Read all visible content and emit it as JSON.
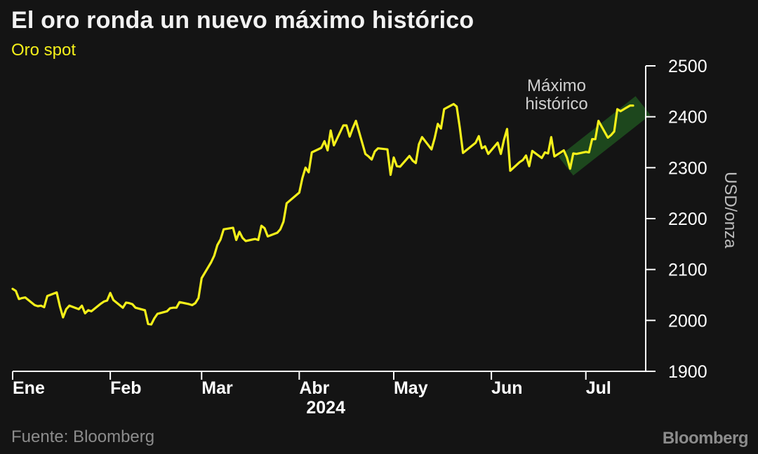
{
  "header": {
    "title": "El oro ronda un nuevo máximo histórico",
    "subtitle": "Oro spot"
  },
  "footer": {
    "source": "Fuente: Bloomberg",
    "brand": "Bloomberg"
  },
  "colors": {
    "background": "#141414",
    "series": "#f5f01a",
    "highlight_band": "#1e4a1e",
    "axis": "#ffffff",
    "muted_text": "#8c8c8c"
  },
  "chart_data": {
    "type": "line",
    "title": "El oro ronda un nuevo máximo histórico",
    "subtitle": "Oro spot",
    "ylabel": "USD/onza",
    "ylabel_position": "right",
    "ylim": [
      1900,
      2500
    ],
    "yticks": [
      1900,
      2000,
      2100,
      2200,
      2300,
      2400,
      2500
    ],
    "xlim": [
      "2024-01-01",
      "2024-07-20"
    ],
    "xtick_labels": [
      "Ene",
      "Feb",
      "Mar",
      "Abr",
      "May",
      "Jun",
      "Jul"
    ],
    "xtick_dates": [
      "2024-01-01",
      "2024-02-01",
      "2024-03-01",
      "2024-04-01",
      "2024-05-01",
      "2024-06-01",
      "2024-07-01"
    ],
    "year_label": "2024",
    "grid": false,
    "legend": "none",
    "annotation": {
      "text_lines": [
        "Máximo",
        "histórico"
      ],
      "highlight_from": "2024-06-26",
      "highlight_to": "2024-07-17"
    },
    "series": [
      {
        "values": [
          [
            "2024-01-01",
            2062
          ],
          [
            "2024-01-02",
            2058
          ],
          [
            "2024-01-03",
            2042
          ],
          [
            "2024-01-04",
            2044
          ],
          [
            "2024-01-05",
            2045
          ],
          [
            "2024-01-08",
            2030
          ],
          [
            "2024-01-09",
            2028
          ],
          [
            "2024-01-10",
            2029
          ],
          [
            "2024-01-11",
            2026
          ],
          [
            "2024-01-12",
            2048
          ],
          [
            "2024-01-15",
            2055
          ],
          [
            "2024-01-16",
            2028
          ],
          [
            "2024-01-17",
            2006
          ],
          [
            "2024-01-18",
            2022
          ],
          [
            "2024-01-19",
            2029
          ],
          [
            "2024-01-22",
            2022
          ],
          [
            "2024-01-23",
            2029
          ],
          [
            "2024-01-24",
            2014
          ],
          [
            "2024-01-25",
            2020
          ],
          [
            "2024-01-26",
            2018
          ],
          [
            "2024-01-29",
            2033
          ],
          [
            "2024-01-30",
            2037
          ],
          [
            "2024-01-31",
            2039
          ],
          [
            "2024-02-01",
            2054
          ],
          [
            "2024-02-02",
            2040
          ],
          [
            "2024-02-05",
            2025
          ],
          [
            "2024-02-06",
            2035
          ],
          [
            "2024-02-07",
            2034
          ],
          [
            "2024-02-08",
            2032
          ],
          [
            "2024-02-09",
            2025
          ],
          [
            "2024-02-12",
            2020
          ],
          [
            "2024-02-13",
            1993
          ],
          [
            "2024-02-14",
            1992
          ],
          [
            "2024-02-15",
            2004
          ],
          [
            "2024-02-16",
            2013
          ],
          [
            "2024-02-19",
            2018
          ],
          [
            "2024-02-20",
            2024
          ],
          [
            "2024-02-21",
            2025
          ],
          [
            "2024-02-22",
            2025
          ],
          [
            "2024-02-23",
            2036
          ],
          [
            "2024-02-26",
            2032
          ],
          [
            "2024-02-27",
            2030
          ],
          [
            "2024-02-28",
            2034
          ],
          [
            "2024-02-29",
            2044
          ],
          [
            "2024-03-01",
            2083
          ],
          [
            "2024-03-04",
            2114
          ],
          [
            "2024-03-05",
            2127
          ],
          [
            "2024-03-06",
            2148
          ],
          [
            "2024-03-07",
            2159
          ],
          [
            "2024-03-08",
            2179
          ],
          [
            "2024-03-11",
            2182
          ],
          [
            "2024-03-12",
            2158
          ],
          [
            "2024-03-13",
            2174
          ],
          [
            "2024-03-14",
            2162
          ],
          [
            "2024-03-15",
            2156
          ],
          [
            "2024-03-18",
            2160
          ],
          [
            "2024-03-19",
            2158
          ],
          [
            "2024-03-20",
            2186
          ],
          [
            "2024-03-21",
            2181
          ],
          [
            "2024-03-22",
            2165
          ],
          [
            "2024-03-25",
            2172
          ],
          [
            "2024-03-26",
            2179
          ],
          [
            "2024-03-27",
            2194
          ],
          [
            "2024-03-28",
            2230
          ],
          [
            "2024-04-01",
            2251
          ],
          [
            "2024-04-02",
            2280
          ],
          [
            "2024-04-03",
            2300
          ],
          [
            "2024-04-04",
            2291
          ],
          [
            "2024-04-05",
            2330
          ],
          [
            "2024-04-08",
            2339
          ],
          [
            "2024-04-09",
            2352
          ],
          [
            "2024-04-10",
            2334
          ],
          [
            "2024-04-11",
            2373
          ],
          [
            "2024-04-12",
            2344
          ],
          [
            "2024-04-15",
            2383
          ],
          [
            "2024-04-16",
            2383
          ],
          [
            "2024-04-17",
            2361
          ],
          [
            "2024-04-18",
            2378
          ],
          [
            "2024-04-19",
            2392
          ],
          [
            "2024-04-22",
            2327
          ],
          [
            "2024-04-23",
            2322
          ],
          [
            "2024-04-24",
            2316
          ],
          [
            "2024-04-25",
            2332
          ],
          [
            "2024-04-26",
            2338
          ],
          [
            "2024-04-29",
            2336
          ],
          [
            "2024-04-30",
            2286
          ],
          [
            "2024-05-01",
            2320
          ],
          [
            "2024-05-02",
            2303
          ],
          [
            "2024-05-03",
            2302
          ],
          [
            "2024-05-06",
            2323
          ],
          [
            "2024-05-07",
            2314
          ],
          [
            "2024-05-08",
            2309
          ],
          [
            "2024-05-09",
            2346
          ],
          [
            "2024-05-10",
            2360
          ],
          [
            "2024-05-13",
            2336
          ],
          [
            "2024-05-14",
            2358
          ],
          [
            "2024-05-15",
            2386
          ],
          [
            "2024-05-16",
            2377
          ],
          [
            "2024-05-17",
            2415
          ],
          [
            "2024-05-20",
            2425
          ],
          [
            "2024-05-21",
            2420
          ],
          [
            "2024-05-22",
            2378
          ],
          [
            "2024-05-23",
            2329
          ],
          [
            "2024-05-24",
            2334
          ],
          [
            "2024-05-27",
            2349
          ],
          [
            "2024-05-28",
            2362
          ],
          [
            "2024-05-29",
            2338
          ],
          [
            "2024-05-30",
            2342
          ],
          [
            "2024-05-31",
            2327
          ],
          [
            "2024-06-03",
            2349
          ],
          [
            "2024-06-04",
            2327
          ],
          [
            "2024-06-05",
            2355
          ],
          [
            "2024-06-06",
            2376
          ],
          [
            "2024-06-07",
            2294
          ],
          [
            "2024-06-10",
            2311
          ],
          [
            "2024-06-11",
            2315
          ],
          [
            "2024-06-12",
            2324
          ],
          [
            "2024-06-13",
            2303
          ],
          [
            "2024-06-14",
            2333
          ],
          [
            "2024-06-17",
            2319
          ],
          [
            "2024-06-18",
            2330
          ],
          [
            "2024-06-19",
            2328
          ],
          [
            "2024-06-20",
            2360
          ],
          [
            "2024-06-21",
            2322
          ],
          [
            "2024-06-24",
            2334
          ],
          [
            "2024-06-25",
            2320
          ],
          [
            "2024-06-26",
            2298
          ],
          [
            "2024-06-27",
            2328
          ],
          [
            "2024-06-28",
            2327
          ],
          [
            "2024-07-01",
            2331
          ],
          [
            "2024-07-02",
            2330
          ],
          [
            "2024-07-03",
            2356
          ],
          [
            "2024-07-04",
            2356
          ],
          [
            "2024-07-05",
            2392
          ],
          [
            "2024-07-08",
            2359
          ],
          [
            "2024-07-09",
            2364
          ],
          [
            "2024-07-10",
            2371
          ],
          [
            "2024-07-11",
            2415
          ],
          [
            "2024-07-12",
            2411
          ],
          [
            "2024-07-15",
            2422
          ],
          [
            "2024-07-16",
            2422
          ]
        ]
      }
    ]
  }
}
